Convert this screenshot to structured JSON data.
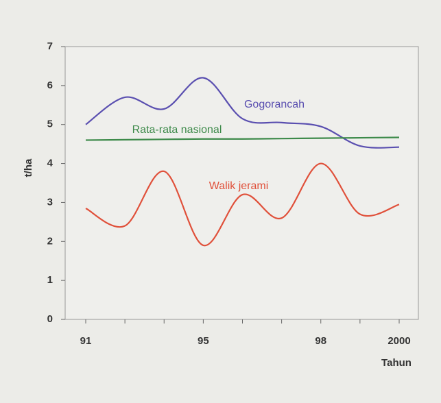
{
  "chart_data": {
    "type": "line",
    "y_label": "t/ha",
    "x_label": "Tahun",
    "categories": [
      "91",
      null,
      null,
      "95",
      null,
      null,
      "98",
      null,
      "2000"
    ],
    "series": [
      {
        "name": "Gogorancah",
        "color": "#5a4fb0",
        "values": [
          5.0,
          5.7,
          5.4,
          6.2,
          5.15,
          5.05,
          4.95,
          4.45,
          4.42
        ]
      },
      {
        "name": "Rata-rata nasional",
        "color": "#3d8a4a",
        "values": [
          4.6,
          4.61,
          4.62,
          4.63,
          4.63,
          4.64,
          4.65,
          4.66,
          4.67
        ]
      },
      {
        "name": "Walik jerami",
        "color": "#e0503a",
        "values": [
          2.85,
          2.4,
          3.8,
          1.9,
          3.2,
          2.6,
          4.0,
          2.7,
          2.95
        ]
      }
    ],
    "ylim": [
      0,
      7
    ],
    "yticks": [
      0,
      1,
      2,
      3,
      4,
      5,
      6,
      7
    ]
  }
}
